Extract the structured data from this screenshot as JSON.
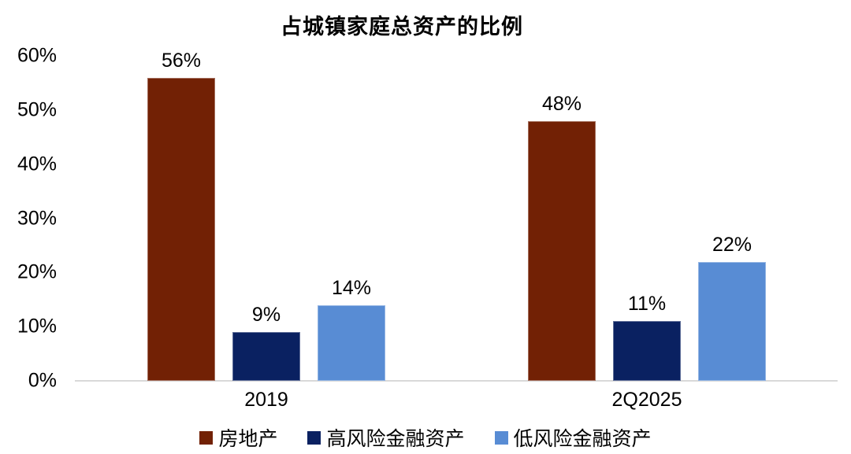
{
  "chart_data": {
    "type": "bar",
    "title": "占城镇家庭总资产的比例",
    "categories": [
      "2019",
      "2Q2025"
    ],
    "series": [
      {
        "name": "房地产",
        "color": "#722105",
        "values": [
          56,
          48
        ]
      },
      {
        "name": "高风险金融资产",
        "color": "#0a2161",
        "values": [
          9,
          11
        ]
      },
      {
        "name": "低风险金融资产",
        "color": "#588cd4",
        "values": [
          14,
          22
        ]
      }
    ],
    "value_suffix": "%",
    "ylim": [
      0,
      60
    ],
    "yticks": [
      {
        "value": 0,
        "label": "0%"
      },
      {
        "value": 10,
        "label": "10%"
      },
      {
        "value": 20,
        "label": "20%"
      },
      {
        "value": 30,
        "label": "30%"
      },
      {
        "value": 40,
        "label": "40%"
      },
      {
        "value": 50,
        "label": "50%"
      },
      {
        "value": 60,
        "label": "60%"
      }
    ],
    "grid": false,
    "legend_position": "bottom",
    "axis_line_color": "#d9d9d9",
    "text_color": "#000000"
  }
}
